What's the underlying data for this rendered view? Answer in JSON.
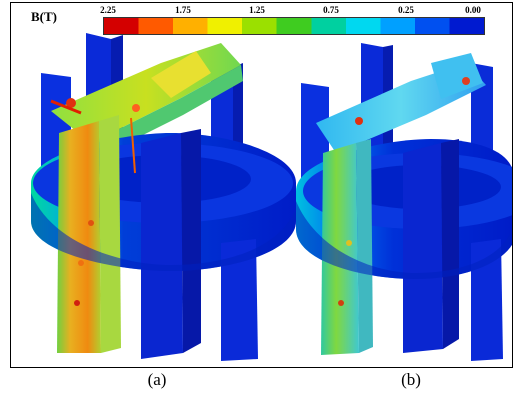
{
  "legend": {
    "title": "B(T)",
    "ticks": [
      "2.25",
      "1.75",
      "1.25",
      "0.75",
      "0.25",
      "0.00"
    ],
    "colors": [
      "#d40000",
      "#ff5a00",
      "#ffb000",
      "#f0f000",
      "#9be000",
      "#3fcc20",
      "#00d0a0",
      "#00d8f0",
      "#00a0ff",
      "#0050f0",
      "#001ad0"
    ]
  },
  "captions": {
    "a": "(a)",
    "b": "(b)"
  }
}
